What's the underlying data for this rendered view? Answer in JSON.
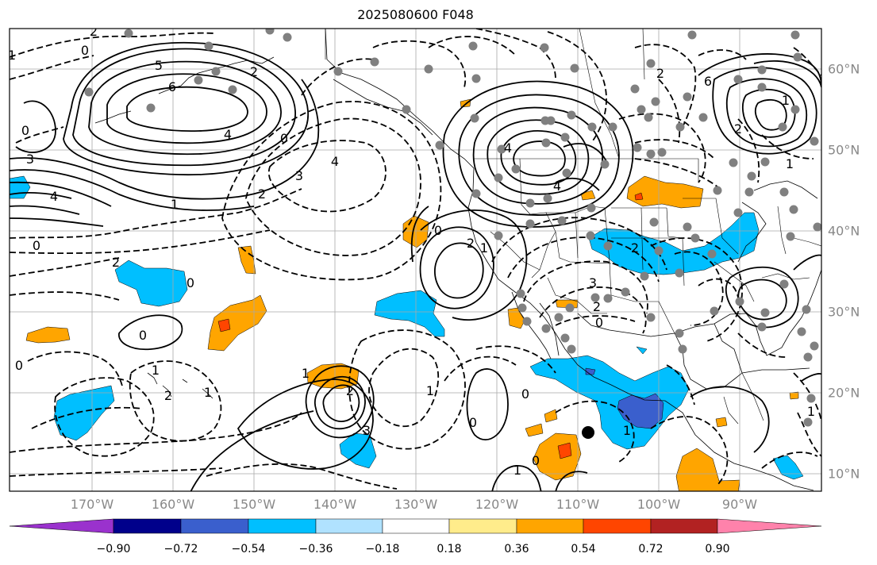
{
  "title": "2025080600 F048",
  "lon_labels": [
    "170°W",
    "160°W",
    "150°W",
    "140°W",
    "130°W",
    "120°W",
    "110°W",
    "100°W",
    "90°W"
  ],
  "lat_labels": [
    "60°N",
    "50°N",
    "40°N",
    "30°N",
    "20°N",
    "10°N"
  ],
  "colorbar": {
    "ticks": [
      "−0.90",
      "−0.72",
      "−0.54",
      "−0.36",
      "−0.18",
      "0.18",
      "0.36",
      "0.54",
      "0.72",
      "0.90"
    ],
    "colors": [
      "#9a32cd",
      "#00008b",
      "#3a5fcd",
      "#00bfff",
      "#b0e2ff",
      "#ffffff",
      "#ffec8b",
      "#ffa500",
      "#ff4500",
      "#b22222",
      "#ff82ab"
    ]
  },
  "contour_labels": {
    "pos": [
      "0",
      "6",
      "4",
      "3",
      "4",
      "1",
      "0",
      "2",
      "1",
      "0",
      "0",
      "4",
      "3",
      "2",
      "2",
      "0",
      "0",
      "2",
      "1",
      "1",
      "1",
      "2",
      "3",
      "0",
      "1",
      "0",
      "4",
      "1",
      "2",
      "0",
      "2",
      "3",
      "0",
      "1",
      "2",
      "0",
      "2",
      "3",
      "4",
      "1",
      "6",
      "1",
      "2",
      "1",
      "1"
    ],
    "neg": [
      "2",
      "0",
      "5"
    ]
  },
  "colors": {
    "orange": "#ffa500",
    "light_orange": "#ffec8b",
    "red": "#ff4500",
    "cyan": "#00bfff",
    "blue": "#3a5fcd",
    "station_dot": "#808080"
  }
}
